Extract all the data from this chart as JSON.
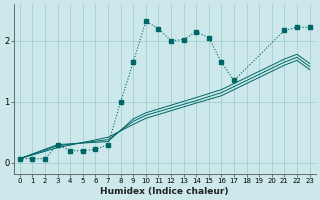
{
  "xlabel": "Humidex (Indice chaleur)",
  "bg_color": "#cce8ea",
  "grid_color": "#99cccc",
  "line_color": "#006666",
  "xlim": [
    -0.5,
    23.5
  ],
  "ylim": [
    -0.18,
    2.6
  ],
  "xticks": [
    0,
    1,
    2,
    3,
    4,
    5,
    6,
    7,
    8,
    9,
    10,
    11,
    12,
    13,
    14,
    15,
    16,
    17,
    18,
    19,
    20,
    21,
    22,
    23
  ],
  "yticks": [
    0,
    1,
    2
  ],
  "curve_x": [
    0,
    1,
    2,
    3,
    4,
    5,
    6,
    7,
    8,
    9,
    10,
    11,
    12,
    13,
    14,
    15,
    16,
    17,
    21,
    22,
    23
  ],
  "curve_y": [
    0.07,
    0.07,
    0.07,
    0.3,
    0.2,
    0.2,
    0.22,
    0.3,
    1.0,
    1.65,
    2.32,
    2.2,
    2.0,
    2.02,
    2.15,
    2.05,
    1.65,
    1.35,
    2.17,
    2.22,
    2.22
  ],
  "line1_x": [
    0,
    3,
    7,
    9,
    10,
    14,
    16,
    17,
    21,
    22,
    23
  ],
  "line1_y": [
    0.07,
    0.3,
    0.35,
    0.72,
    0.82,
    1.07,
    1.2,
    1.3,
    1.7,
    1.78,
    1.63
  ],
  "line2_x": [
    0,
    3,
    7,
    9,
    10,
    14,
    16,
    17,
    21,
    22,
    23
  ],
  "line2_y": [
    0.07,
    0.28,
    0.38,
    0.68,
    0.78,
    1.02,
    1.15,
    1.25,
    1.65,
    1.73,
    1.58
  ],
  "line3_x": [
    0,
    3,
    7,
    9,
    10,
    14,
    16,
    17,
    21,
    22,
    23
  ],
  "line3_y": [
    0.07,
    0.25,
    0.42,
    0.63,
    0.73,
    0.98,
    1.1,
    1.2,
    1.6,
    1.68,
    1.53
  ]
}
